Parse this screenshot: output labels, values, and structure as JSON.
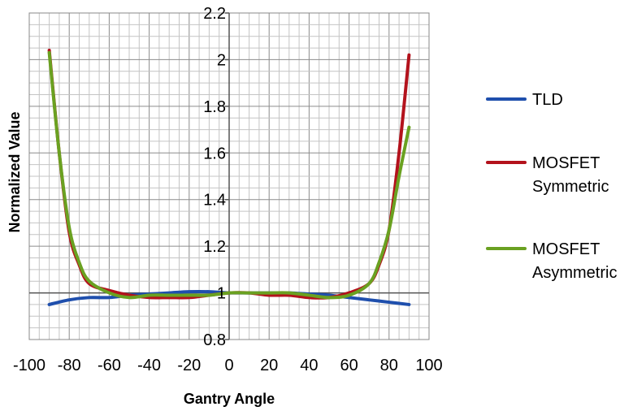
{
  "chart_data": {
    "type": "line",
    "title": "",
    "xlabel": "Gantry Angle",
    "ylabel": "Normalized Value",
    "xlim": [
      -100,
      100
    ],
    "ylim": [
      0.8,
      2.2
    ],
    "x_ticks": [
      "-100",
      "-80",
      "-60",
      "-40",
      "-20",
      "0",
      "20",
      "40",
      "60",
      "80",
      "100"
    ],
    "y_ticks": [
      "0.8",
      "1",
      "1.2",
      "1.4",
      "1.6",
      "1.8",
      "2",
      "2.2"
    ],
    "grid": true,
    "legend_position": "right",
    "series": [
      {
        "name": "TLD",
        "legend_lines": [
          "TLD"
        ],
        "color": "#1f4fad",
        "x": [
          -90,
          -80,
          -70,
          -60,
          -50,
          -40,
          -30,
          -20,
          -10,
          0,
          10,
          20,
          30,
          40,
          50,
          60,
          70,
          80,
          90
        ],
        "y": [
          0.95,
          0.97,
          0.98,
          0.98,
          0.99,
          0.995,
          1.0,
          1.005,
          1.005,
          1.0,
          1.0,
          1.0,
          1.0,
          0.995,
          0.99,
          0.98,
          0.97,
          0.96,
          0.95
        ]
      },
      {
        "name": "MOSFET Symmetric",
        "legend_lines": [
          "MOSFET",
          "Symmetric"
        ],
        "color": "#b3121c",
        "x": [
          -90,
          -85,
          -80,
          -75,
          -70,
          -60,
          -50,
          -40,
          -30,
          -20,
          -10,
          0,
          10,
          20,
          30,
          40,
          50,
          60,
          70,
          75,
          80,
          85,
          90
        ],
        "y": [
          2.04,
          1.6,
          1.26,
          1.12,
          1.04,
          1.01,
          0.99,
          0.98,
          0.98,
          0.98,
          0.99,
          1.0,
          1.0,
          0.99,
          0.99,
          0.98,
          0.98,
          1.0,
          1.04,
          1.12,
          1.27,
          1.6,
          2.02
        ]
      },
      {
        "name": "MOSFET Asymmetric",
        "legend_lines": [
          "MOSFET",
          "Asymmetric"
        ],
        "color": "#6aa121",
        "x": [
          -90,
          -85,
          -80,
          -75,
          -70,
          -60,
          -50,
          -40,
          -30,
          -20,
          -10,
          0,
          10,
          20,
          30,
          40,
          50,
          60,
          70,
          75,
          80,
          85,
          90
        ],
        "y": [
          2.03,
          1.6,
          1.28,
          1.13,
          1.05,
          1.0,
          0.98,
          0.99,
          0.99,
          0.99,
          0.99,
          1.0,
          1.0,
          1.0,
          1.0,
          0.99,
          0.98,
          0.99,
          1.04,
          1.13,
          1.27,
          1.5,
          1.71
        ]
      }
    ]
  }
}
